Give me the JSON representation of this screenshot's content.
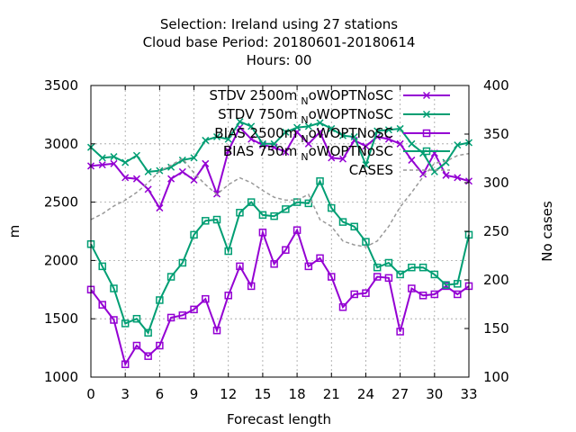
{
  "chart_data": {
    "type": "line",
    "title_lines": [
      "Selection: Ireland using    27 stations",
      "Cloud base   Period: 20180601-20180614",
      "Hours:  00"
    ],
    "xlabel": "Forecast length",
    "ylabel": "m",
    "y2label": "No cases",
    "xlim": [
      0,
      33
    ],
    "ylim": [
      1000,
      3500
    ],
    "y2lim": [
      100,
      400
    ],
    "x_ticks": [
      0,
      3,
      6,
      9,
      12,
      15,
      18,
      21,
      24,
      27,
      30,
      33
    ],
    "y_ticks": [
      1000,
      1500,
      2000,
      2500,
      3000,
      3500
    ],
    "y2_ticks": [
      100,
      150,
      200,
      250,
      300,
      350,
      400
    ],
    "grid": true,
    "legend_position": "top-right",
    "x": [
      0,
      1,
      2,
      3,
      4,
      5,
      6,
      7,
      8,
      9,
      10,
      11,
      12,
      13,
      14,
      15,
      16,
      17,
      18,
      19,
      20,
      21,
      22,
      23,
      24,
      25,
      26,
      27,
      28,
      29,
      30,
      31,
      32,
      33
    ],
    "series": [
      {
        "name": "STDV 2500m",
        "name_sub": "N",
        "name_suffix": "oWOPTNoSC",
        "color": "#9400d3",
        "marker": "x",
        "axis": "y",
        "values": [
          2810,
          2820,
          2830,
          2710,
          2700,
          2610,
          2450,
          2700,
          2760,
          2690,
          2830,
          2570,
          2940,
          3140,
          3040,
          2990,
          2970,
          2930,
          3100,
          3000,
          3100,
          2880,
          2870,
          3030,
          2980,
          3060,
          3040,
          3000,
          2860,
          2740,
          2920,
          2730,
          2710,
          2680
        ]
      },
      {
        "name": "STDV 750m",
        "name_sub": "N",
        "name_suffix": "oWOPTNoSC",
        "color": "#009e73",
        "marker": "x",
        "axis": "y",
        "values": [
          2970,
          2880,
          2890,
          2840,
          2900,
          2760,
          2770,
          2800,
          2860,
          2880,
          3030,
          3060,
          3040,
          3190,
          3150,
          3000,
          3000,
          3100,
          3140,
          3150,
          3180,
          3130,
          3070,
          3060,
          2820,
          3110,
          3120,
          3130,
          3000,
          2920,
          2760,
          2840,
          2990,
          3010
        ]
      },
      {
        "name": "BIAS 2500m",
        "name_sub": "N",
        "name_suffix": "oWOPTNoSC",
        "color": "#9400d3",
        "marker": "square",
        "axis": "y",
        "values": [
          1750,
          1620,
          1490,
          1110,
          1270,
          1180,
          1270,
          1510,
          1530,
          1580,
          1670,
          1400,
          1700,
          1950,
          1780,
          2240,
          1970,
          2090,
          2260,
          1950,
          2020,
          1860,
          1600,
          1710,
          1720,
          1860,
          1850,
          1390,
          1760,
          1700,
          1710,
          1780,
          1710,
          1780
        ]
      },
      {
        "name": "BIAS 750m",
        "name_sub": "N",
        "name_suffix": "oWOPTNoSC",
        "color": "#009e73",
        "marker": "square",
        "axis": "y",
        "values": [
          2140,
          1950,
          1760,
          1460,
          1500,
          1380,
          1660,
          1860,
          1980,
          2220,
          2340,
          2350,
          2080,
          2410,
          2500,
          2390,
          2380,
          2440,
          2500,
          2490,
          2680,
          2450,
          2330,
          2290,
          2160,
          1940,
          1980,
          1880,
          1940,
          1940,
          1880,
          1790,
          1800,
          2220
        ]
      },
      {
        "name": "CASES",
        "color": "#999999",
        "marker": "none",
        "dash": true,
        "axis": "y2",
        "values": [
          262,
          268,
          276,
          282,
          290,
          300,
          312,
          318,
          325,
          310,
          298,
          288,
          298,
          305,
          300,
          292,
          285,
          282,
          282,
          288,
          262,
          255,
          240,
          236,
          234,
          240,
          255,
          275,
          290,
          306,
          320,
          322,
          328,
          330
        ]
      }
    ]
  }
}
